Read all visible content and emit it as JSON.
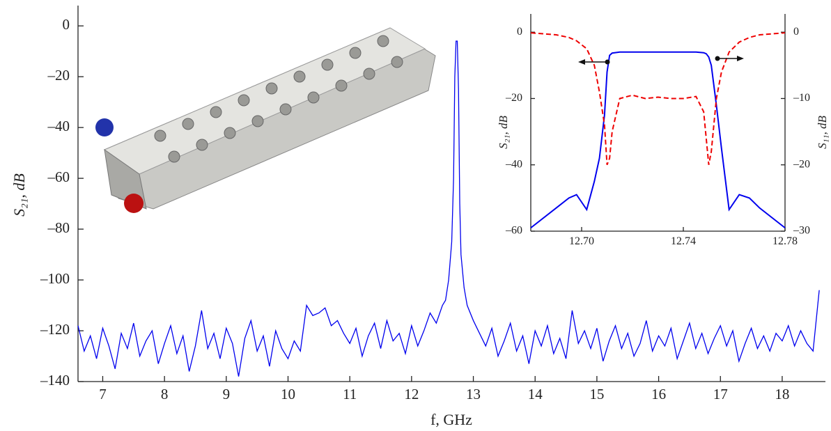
{
  "chart_data": [
    {
      "type": "line",
      "x_label": "f, GHz",
      "y_label": "S₂₁, dB",
      "xlim": [
        6.6,
        18.7
      ],
      "ylim": [
        -140,
        8
      ],
      "xticks": [
        7,
        8,
        9,
        10,
        11,
        12,
        13,
        14,
        15,
        16,
        17,
        18
      ],
      "yticks": [
        0,
        {
          "value": -20,
          "label": "–20"
        },
        {
          "value": -40,
          "label": "–40"
        },
        {
          "value": -60,
          "label": "–60"
        },
        {
          "value": -80,
          "label": "–80"
        },
        {
          "value": -100,
          "label": "–100"
        },
        {
          "value": -120,
          "label": "–120"
        },
        {
          "value": -140,
          "label": "–140"
        }
      ],
      "x": [
        6.6,
        6.7,
        6.8,
        6.9,
        7.0,
        7.1,
        7.2,
        7.3,
        7.4,
        7.5,
        7.6,
        7.7,
        7.8,
        7.9,
        8.0,
        8.1,
        8.2,
        8.3,
        8.4,
        8.5,
        8.6,
        8.7,
        8.8,
        8.9,
        9.0,
        9.1,
        9.2,
        9.3,
        9.4,
        9.5,
        9.6,
        9.7,
        9.8,
        9.9,
        10.0,
        10.1,
        10.2,
        10.3,
        10.4,
        10.5,
        10.6,
        10.7,
        10.8,
        10.9,
        11.0,
        11.1,
        11.2,
        11.3,
        11.4,
        11.5,
        11.6,
        11.7,
        11.8,
        11.9,
        12.0,
        12.1,
        12.2,
        12.3,
        12.4,
        12.5,
        12.55,
        12.6,
        12.65,
        12.68,
        12.7,
        12.72,
        12.74,
        12.76,
        12.78,
        12.8,
        12.85,
        12.9,
        13.0,
        13.1,
        13.2,
        13.3,
        13.4,
        13.5,
        13.6,
        13.7,
        13.8,
        13.9,
        14.0,
        14.1,
        14.2,
        14.3,
        14.4,
        14.5,
        14.6,
        14.7,
        14.8,
        14.9,
        15.0,
        15.1,
        15.2,
        15.3,
        15.4,
        15.5,
        15.6,
        15.7,
        15.8,
        15.9,
        16.0,
        16.1,
        16.2,
        16.3,
        16.4,
        16.5,
        16.6,
        16.7,
        16.8,
        16.9,
        17.0,
        17.1,
        17.2,
        17.3,
        17.4,
        17.5,
        17.6,
        17.7,
        17.8,
        17.9,
        18.0,
        18.1,
        18.2,
        18.3,
        18.4,
        18.5,
        18.6
      ],
      "series": [
        {
          "color": "#0000ee",
          "line_style": "solid",
          "values": [
            -118,
            -128,
            -122,
            -131,
            -119,
            -126,
            -135,
            -121,
            -127,
            -117,
            -130,
            -124,
            -120,
            -133,
            -125,
            -118,
            -129,
            -122,
            -136,
            -126,
            -112,
            -127,
            -121,
            -131,
            -119,
            -125,
            -138,
            -123,
            -116,
            -128,
            -122,
            -134,
            -120,
            -127,
            -131,
            -124,
            -128,
            -110,
            -114,
            -113,
            -111,
            -118,
            -116,
            -121,
            -125,
            -119,
            -130,
            -122,
            -117,
            -127,
            -116,
            -124,
            -121,
            -129,
            -118,
            -126,
            -120,
            -113,
            -117,
            -110,
            -108,
            -100,
            -85,
            -60,
            -20,
            -6,
            -6,
            -25,
            -70,
            -90,
            -103,
            -110,
            -116,
            -121,
            -126,
            -119,
            -130,
            -124,
            -117,
            -128,
            -122,
            -133,
            -120,
            -126,
            -118,
            -129,
            -123,
            -131,
            -112,
            -125,
            -120,
            -127,
            -119,
            -132,
            -124,
            -118,
            -127,
            -121,
            -130,
            -125,
            -116,
            -128,
            -122,
            -126,
            -119,
            -131,
            -124,
            -117,
            -127,
            -121,
            -129,
            -123,
            -118,
            -126,
            -120,
            -132,
            -125,
            -119,
            -127,
            -122,
            -128,
            -121,
            -124,
            -118,
            -126,
            -120,
            -125,
            -128,
            -104
          ]
        }
      ]
    },
    {
      "type": "line",
      "y_label": "S₂₁, dB",
      "y2_label": "S₁₁, dB",
      "xlim": [
        12.68,
        12.78
      ],
      "ylim": [
        -60,
        5.5
      ],
      "y2lim": [
        -30,
        2.75
      ],
      "xticks": [
        {
          "value": 12.7,
          "label": "12.70"
        },
        12.74,
        12.78
      ],
      "yticks": [
        0,
        {
          "value": -20,
          "label": "–20"
        },
        {
          "value": -40,
          "label": "–40"
        },
        {
          "value": -60,
          "label": "–60"
        }
      ],
      "y2ticks": [
        0,
        {
          "value": -10,
          "label": "–10"
        },
        {
          "value": -20,
          "label": "–20"
        },
        {
          "value": -30,
          "label": "–30"
        }
      ],
      "x": [
        12.68,
        12.69,
        12.695,
        12.698,
        12.702,
        12.705,
        12.707,
        12.709,
        12.71,
        12.711,
        12.712,
        12.715,
        12.72,
        12.725,
        12.73,
        12.735,
        12.74,
        12.745,
        12.748,
        12.749,
        12.75,
        12.751,
        12.753,
        12.755,
        12.758,
        12.762,
        12.766,
        12.77,
        12.78
      ],
      "series": [
        {
          "color": "#0000ee",
          "line_style": "solid",
          "values": [
            -59,
            -53,
            -50,
            -49,
            -53.5,
            -45,
            -38,
            -25,
            -12,
            -7,
            -6.3,
            -6,
            -6,
            -6,
            -6,
            -6,
            -6,
            -6,
            -6.2,
            -6.5,
            -7.5,
            -10,
            -22,
            -35,
            -53.5,
            -49,
            -50,
            -53,
            -59
          ]
        },
        {
          "color": "#ee0000",
          "line_style": "dashed",
          "axis": "y2",
          "values": [
            -0.1,
            -0.4,
            -0.8,
            -1.3,
            -2.5,
            -5,
            -9,
            -14,
            -20,
            -19,
            -15,
            -10,
            -9.5,
            -10,
            -9.8,
            -10,
            -10,
            -9.7,
            -12,
            -16,
            -20,
            -18,
            -10,
            -6,
            -3,
            -1.5,
            -0.8,
            -0.4,
            -0.1
          ]
        }
      ]
    }
  ]
}
